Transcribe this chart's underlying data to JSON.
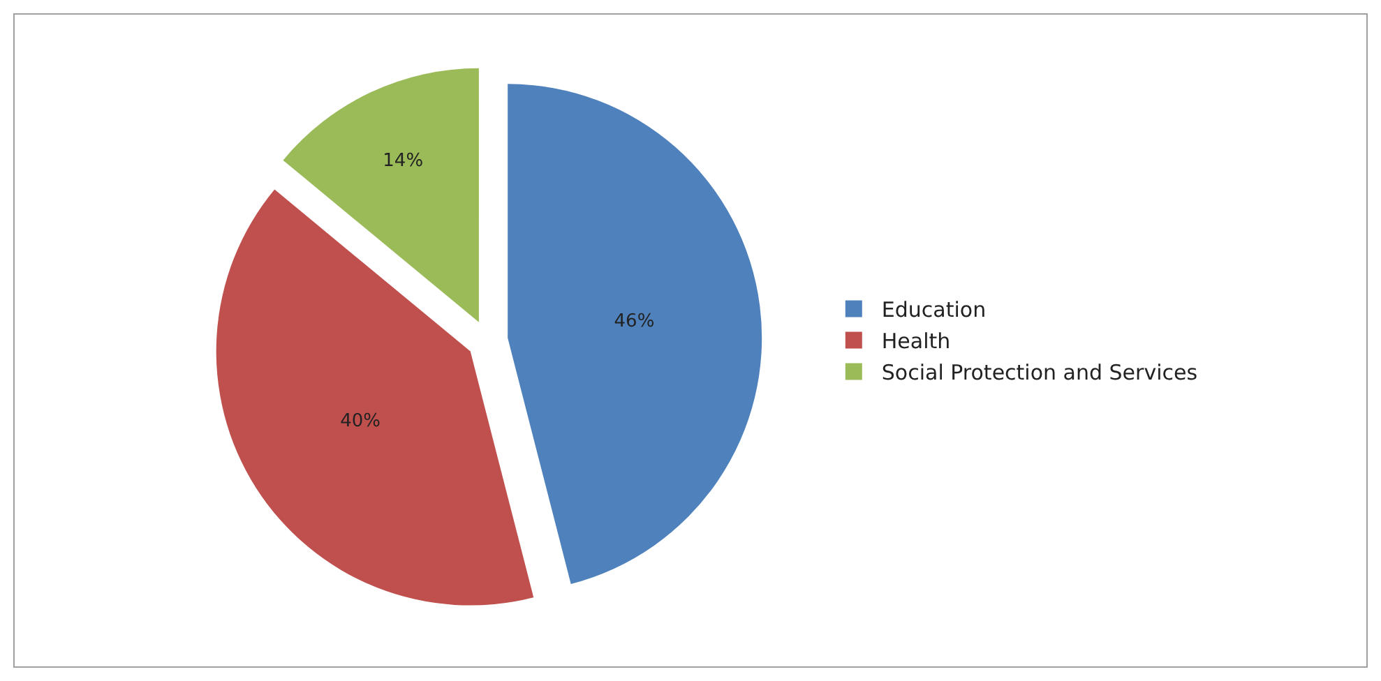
{
  "chart_data": {
    "type": "pie",
    "categories": [
      "Education",
      "Health",
      "Social Protection and Services"
    ],
    "values": [
      46,
      40,
      14
    ],
    "value_labels": [
      "46%",
      "40%",
      "14%"
    ],
    "colors": [
      "#4f81bd",
      "#c0504d",
      "#9bbb59"
    ],
    "legend": "right"
  }
}
